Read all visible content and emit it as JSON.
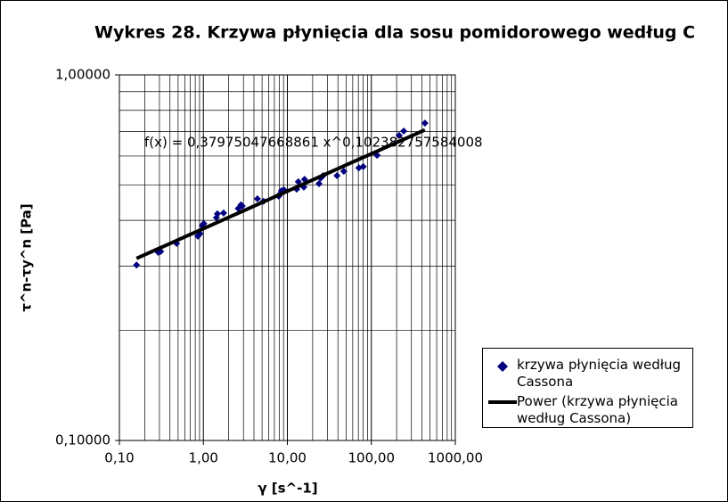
{
  "chart_data": {
    "type": "scatter",
    "title": "Wykres 28. Krzywa płynięcia dla sosu pomidorowego według C",
    "x_label": "γ [s^-1]",
    "y_label": "τ^n-τy^n [Pa]",
    "log_x": true,
    "log_y": true,
    "grid": true,
    "minor_grid": true,
    "xlim": [
      0.1,
      1000
    ],
    "xticks": [
      {
        "value": 0.1,
        "label": "0,10"
      },
      {
        "value": 1,
        "label": "1,00"
      },
      {
        "value": 10,
        "label": "10,00"
      },
      {
        "value": 100,
        "label": "100,00"
      },
      {
        "value": 1000,
        "label": "1000,00"
      }
    ],
    "ylim": [
      0.1,
      1
    ],
    "yticks": [
      {
        "value": 0.1,
        "label": "0,10000"
      },
      {
        "value": 1,
        "label": "1,00000"
      }
    ],
    "series": [
      {
        "name": "krzywa płynięcia według Cassona",
        "color": "#000080",
        "x": [
          0.16,
          0.29,
          0.31,
          0.48,
          0.86,
          0.91,
          0.97,
          1.01,
          1.43,
          1.47,
          1.74,
          2.6,
          2.8,
          2.9,
          4.4,
          5.2,
          7.9,
          8.1,
          8.5,
          9.1,
          12.9,
          13.5,
          15.7,
          16.0,
          23.8,
          24.9,
          26.6,
          39,
          47,
          71,
          80,
          117,
          214,
          243,
          434
        ],
        "values": [
          0.302,
          0.327,
          0.329,
          0.346,
          0.362,
          0.368,
          0.387,
          0.392,
          0.407,
          0.417,
          0.419,
          0.431,
          0.441,
          0.438,
          0.458,
          0.451,
          0.466,
          0.471,
          0.482,
          0.485,
          0.487,
          0.51,
          0.493,
          0.518,
          0.504,
          0.522,
          0.53,
          0.53,
          0.545,
          0.557,
          0.561,
          0.603,
          0.683,
          0.702,
          0.738
        ]
      }
    ],
    "trendline": {
      "name": "Power (krzywa płynięcia według Cassona)",
      "color": "#000000",
      "equation": "f(x) = 0,37975047668861 x^0,102382757584008",
      "coefficient": 0.37975047668861,
      "exponent": 0.102382757584008
    }
  }
}
